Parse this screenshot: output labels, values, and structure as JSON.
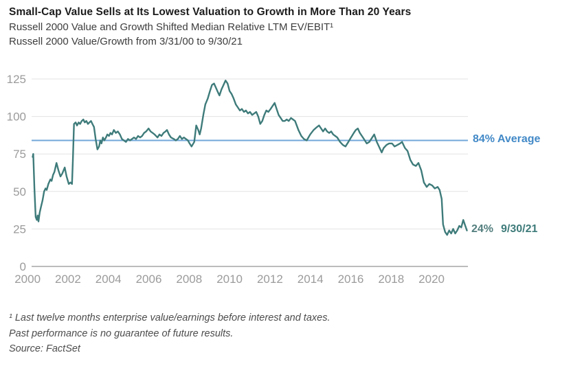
{
  "header": {
    "title": "Small-Cap Value Sells at Its Lowest Valuation to Growth in More Than 20 Years",
    "subtitle1": "Russell 2000 Value and Growth Shifted Median Relative LTM EV/EBIT¹",
    "subtitle2": "Russell 2000 Value/Growth from 3/31/00 to 9/30/21"
  },
  "annotations": {
    "average_label": "84% Average",
    "end_value": "24%",
    "end_date": "9/30/21"
  },
  "footnotes": {
    "line1": "¹ Last twelve months enterprise value/earnings before interest and taxes.",
    "line2": "Past performance is no guarantee of future results.",
    "line3": "Source: FactSet"
  },
  "chart_data": {
    "type": "line",
    "title": "Russell 2000 Value/Growth Shifted Median Relative LTM EV/EBIT",
    "xlabel": "",
    "ylabel": "",
    "x_range": [
      2000.2,
      2021.8
    ],
    "y_range": [
      0,
      125
    ],
    "x_ticks": [
      2000,
      2002,
      2004,
      2006,
      2008,
      2010,
      2012,
      2014,
      2016,
      2018,
      2020
    ],
    "y_ticks": [
      0,
      25,
      50,
      75,
      100,
      125
    ],
    "grid": "horizontal",
    "legend": "none",
    "colors": {
      "series": "#3e7b7a",
      "average_line": "#72a7d9",
      "average_text": "#4289c7",
      "gridline": "#e3e3e3",
      "axis_line": "#a6a6a6",
      "tick_text": "#9b9b9b"
    },
    "average_line": {
      "value": 84,
      "label": "84% Average"
    },
    "end_point": {
      "date": "9/30/21",
      "value": 24,
      "label": "24%"
    },
    "series": [
      {
        "name": "Russell 2000 Value/Growth",
        "points": [
          [
            2000.25,
            73
          ],
          [
            2000.28,
            75
          ],
          [
            2000.34,
            52
          ],
          [
            2000.4,
            33
          ],
          [
            2000.46,
            31
          ],
          [
            2000.5,
            34
          ],
          [
            2000.54,
            30
          ],
          [
            2000.6,
            36
          ],
          [
            2000.67,
            40
          ],
          [
            2000.74,
            44
          ],
          [
            2000.82,
            50
          ],
          [
            2000.89,
            52
          ],
          [
            2000.95,
            51
          ],
          [
            2001.03,
            55
          ],
          [
            2001.13,
            58
          ],
          [
            2001.19,
            57
          ],
          [
            2001.26,
            61
          ],
          [
            2001.33,
            63
          ],
          [
            2001.43,
            69
          ],
          [
            2001.53,
            64
          ],
          [
            2001.63,
            60
          ],
          [
            2001.72,
            62
          ],
          [
            2001.84,
            66
          ],
          [
            2001.93,
            60
          ],
          [
            2002.04,
            55
          ],
          [
            2002.13,
            56
          ],
          [
            2002.2,
            55
          ],
          [
            2002.24,
            70
          ],
          [
            2002.3,
            95
          ],
          [
            2002.38,
            96
          ],
          [
            2002.45,
            94
          ],
          [
            2002.53,
            96
          ],
          [
            2002.6,
            95
          ],
          [
            2002.68,
            97
          ],
          [
            2002.76,
            98
          ],
          [
            2002.83,
            96
          ],
          [
            2002.91,
            97
          ],
          [
            2002.99,
            95
          ],
          [
            2003.06,
            96
          ],
          [
            2003.14,
            97
          ],
          [
            2003.21,
            95
          ],
          [
            2003.29,
            93
          ],
          [
            2003.37,
            85
          ],
          [
            2003.46,
            78
          ],
          [
            2003.54,
            80
          ],
          [
            2003.6,
            84
          ],
          [
            2003.66,
            82
          ],
          [
            2003.73,
            86
          ],
          [
            2003.8,
            84
          ],
          [
            2003.88,
            86
          ],
          [
            2003.95,
            88
          ],
          [
            2004.03,
            87
          ],
          [
            2004.1,
            89
          ],
          [
            2004.18,
            88
          ],
          [
            2004.27,
            91
          ],
          [
            2004.37,
            89
          ],
          [
            2004.47,
            90
          ],
          [
            2004.57,
            88
          ],
          [
            2004.67,
            85
          ],
          [
            2004.77,
            84
          ],
          [
            2004.87,
            83
          ],
          [
            2004.97,
            85
          ],
          [
            2005.07,
            84
          ],
          [
            2005.17,
            85
          ],
          [
            2005.27,
            86
          ],
          [
            2005.37,
            85
          ],
          [
            2005.47,
            87
          ],
          [
            2005.57,
            86
          ],
          [
            2005.67,
            87
          ],
          [
            2005.77,
            89
          ],
          [
            2005.87,
            90
          ],
          [
            2005.99,
            92
          ],
          [
            2006.09,
            90
          ],
          [
            2006.19,
            89
          ],
          [
            2006.29,
            88
          ],
          [
            2006.43,
            86
          ],
          [
            2006.53,
            88
          ],
          [
            2006.63,
            87
          ],
          [
            2006.73,
            89
          ],
          [
            2006.83,
            90
          ],
          [
            2006.9,
            91
          ],
          [
            2007.0,
            88
          ],
          [
            2007.1,
            86
          ],
          [
            2007.24,
            85
          ],
          [
            2007.34,
            84
          ],
          [
            2007.44,
            85
          ],
          [
            2007.54,
            87
          ],
          [
            2007.64,
            85
          ],
          [
            2007.74,
            86
          ],
          [
            2007.84,
            85
          ],
          [
            2007.94,
            84
          ],
          [
            2008.02,
            82
          ],
          [
            2008.12,
            80
          ],
          [
            2008.25,
            83
          ],
          [
            2008.35,
            94
          ],
          [
            2008.45,
            91
          ],
          [
            2008.52,
            88
          ],
          [
            2008.59,
            92
          ],
          [
            2008.7,
            101
          ],
          [
            2008.8,
            108
          ],
          [
            2008.92,
            112
          ],
          [
            2009.03,
            117
          ],
          [
            2009.13,
            121
          ],
          [
            2009.23,
            122
          ],
          [
            2009.33,
            119
          ],
          [
            2009.43,
            116
          ],
          [
            2009.5,
            114
          ],
          [
            2009.6,
            118
          ],
          [
            2009.7,
            121
          ],
          [
            2009.8,
            124
          ],
          [
            2009.9,
            122
          ],
          [
            2010.0,
            117
          ],
          [
            2010.1,
            115
          ],
          [
            2010.2,
            112
          ],
          [
            2010.31,
            108
          ],
          [
            2010.41,
            106
          ],
          [
            2010.51,
            104
          ],
          [
            2010.61,
            105
          ],
          [
            2010.71,
            103
          ],
          [
            2010.81,
            104
          ],
          [
            2010.91,
            102
          ],
          [
            2011.01,
            103
          ],
          [
            2011.12,
            101
          ],
          [
            2011.22,
            102
          ],
          [
            2011.32,
            103
          ],
          [
            2011.42,
            100
          ],
          [
            2011.52,
            95
          ],
          [
            2011.62,
            97
          ],
          [
            2011.72,
            101
          ],
          [
            2011.82,
            104
          ],
          [
            2011.92,
            103
          ],
          [
            2012.03,
            105
          ],
          [
            2012.13,
            107
          ],
          [
            2012.23,
            109
          ],
          [
            2012.33,
            105
          ],
          [
            2012.43,
            101
          ],
          [
            2012.53,
            99
          ],
          [
            2012.63,
            97
          ],
          [
            2012.73,
            97
          ],
          [
            2012.83,
            98
          ],
          [
            2012.93,
            97
          ],
          [
            2013.04,
            99
          ],
          [
            2013.14,
            98
          ],
          [
            2013.24,
            97
          ],
          [
            2013.41,
            91
          ],
          [
            2013.55,
            87
          ],
          [
            2013.68,
            85
          ],
          [
            2013.82,
            84
          ],
          [
            2013.99,
            88
          ],
          [
            2014.16,
            91
          ],
          [
            2014.33,
            93
          ],
          [
            2014.43,
            94
          ],
          [
            2014.53,
            92
          ],
          [
            2014.63,
            90
          ],
          [
            2014.73,
            92
          ],
          [
            2014.83,
            90
          ],
          [
            2014.93,
            89
          ],
          [
            2015.03,
            90
          ],
          [
            2015.13,
            88
          ],
          [
            2015.23,
            87
          ],
          [
            2015.33,
            86
          ],
          [
            2015.47,
            83
          ],
          [
            2015.61,
            81
          ],
          [
            2015.74,
            80
          ],
          [
            2015.88,
            83
          ],
          [
            2016.01,
            86
          ],
          [
            2016.15,
            89
          ],
          [
            2016.25,
            91
          ],
          [
            2016.35,
            92
          ],
          [
            2016.45,
            89
          ],
          [
            2016.55,
            87
          ],
          [
            2016.65,
            85
          ],
          [
            2016.79,
            82
          ],
          [
            2016.92,
            83
          ],
          [
            2017.06,
            86
          ],
          [
            2017.16,
            88
          ],
          [
            2017.29,
            83
          ],
          [
            2017.43,
            79
          ],
          [
            2017.53,
            76
          ],
          [
            2017.63,
            79
          ],
          [
            2017.77,
            81
          ],
          [
            2017.9,
            82
          ],
          [
            2018.04,
            82
          ],
          [
            2018.17,
            80
          ],
          [
            2018.31,
            81
          ],
          [
            2018.44,
            82
          ],
          [
            2018.54,
            83
          ],
          [
            2018.68,
            79
          ],
          [
            2018.81,
            77
          ],
          [
            2018.95,
            71
          ],
          [
            2019.08,
            68
          ],
          [
            2019.22,
            67
          ],
          [
            2019.35,
            69
          ],
          [
            2019.49,
            64
          ],
          [
            2019.62,
            56
          ],
          [
            2019.76,
            53
          ],
          [
            2019.89,
            55
          ],
          [
            2020.03,
            54
          ],
          [
            2020.16,
            52
          ],
          [
            2020.3,
            53
          ],
          [
            2020.4,
            51
          ],
          [
            2020.5,
            45
          ],
          [
            2020.57,
            28
          ],
          [
            2020.67,
            23
          ],
          [
            2020.77,
            21
          ],
          [
            2020.87,
            24
          ],
          [
            2020.97,
            22
          ],
          [
            2021.07,
            25
          ],
          [
            2021.17,
            22
          ],
          [
            2021.27,
            24
          ],
          [
            2021.37,
            27
          ],
          [
            2021.47,
            26
          ],
          [
            2021.57,
            31
          ],
          [
            2021.67,
            27
          ],
          [
            2021.75,
            24
          ]
        ]
      }
    ]
  }
}
